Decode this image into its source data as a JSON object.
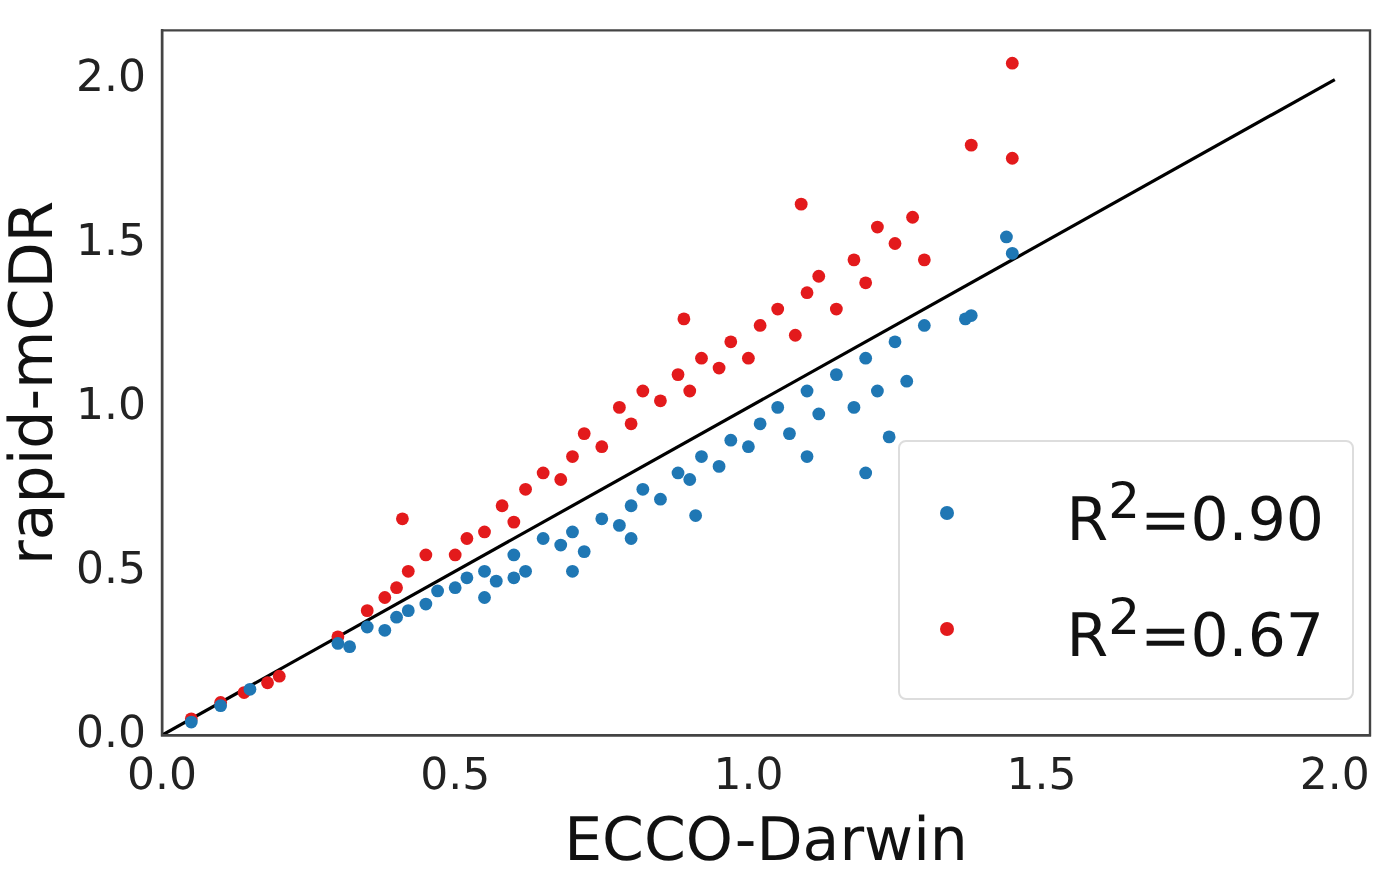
{
  "chart_data": {
    "type": "scatter",
    "xlabel": "ECCO-Darwin",
    "ylabel": "rapid-mCDR",
    "xlim": [
      0,
      2.06
    ],
    "ylim": [
      0,
      2.15
    ],
    "xticks": [
      {
        "value": 0,
        "label": "0.0"
      },
      {
        "value": 0.5,
        "label": "0.5"
      },
      {
        "value": 1,
        "label": "1.0"
      },
      {
        "value": 1.5,
        "label": "1.5"
      },
      {
        "value": 2,
        "label": "2.0"
      }
    ],
    "yticks": [
      {
        "value": 0,
        "label": "0.0"
      },
      {
        "value": 0.5,
        "label": "0.5"
      },
      {
        "value": 1,
        "label": "1.0"
      },
      {
        "value": 1.5,
        "label": "1.5"
      },
      {
        "value": 2,
        "label": "2.0"
      }
    ],
    "grid": false,
    "legend": "bottom right",
    "marker": "circle",
    "series": [
      {
        "name": "R$^{2}$=0.90",
        "color": "#1f77b4",
        "x": [
          0.05,
          0.1,
          0.15,
          0.3,
          0.32,
          0.35,
          0.38,
          0.4,
          0.42,
          0.45,
          0.47,
          0.5,
          0.52,
          0.55,
          0.57,
          0.6,
          0.62,
          0.65,
          0.68,
          0.7,
          0.72,
          0.75,
          0.78,
          0.8,
          0.82,
          0.85,
          0.88,
          0.9,
          0.92,
          0.95,
          0.97,
          1.0,
          1.02,
          1.05,
          1.07,
          1.1,
          1.12,
          1.15,
          1.18,
          1.2,
          1.22,
          1.24,
          1.25,
          1.27,
          1.3,
          1.37,
          1.38,
          1.44,
          1.45,
          0.7,
          0.91,
          1.1,
          1.2,
          0.55,
          0.8,
          0.6
        ],
        "values": [
          0.04,
          0.09,
          0.14,
          0.28,
          0.27,
          0.33,
          0.32,
          0.36,
          0.38,
          0.4,
          0.44,
          0.45,
          0.48,
          0.5,
          0.47,
          0.55,
          0.5,
          0.6,
          0.58,
          0.62,
          0.56,
          0.66,
          0.64,
          0.7,
          0.75,
          0.72,
          0.8,
          0.78,
          0.85,
          0.82,
          0.9,
          0.88,
          0.95,
          1.0,
          0.92,
          1.05,
          0.98,
          1.1,
          1.0,
          1.15,
          1.05,
          0.91,
          1.2,
          1.08,
          1.25,
          1.27,
          1.28,
          1.52,
          1.47,
          0.5,
          0.67,
          0.85,
          0.8,
          0.42,
          0.6,
          0.48
        ]
      },
      {
        "name": "R$^{2}$=0.67",
        "color": "#e31a1c",
        "x": [
          0.05,
          0.1,
          0.14,
          0.18,
          0.2,
          0.3,
          0.35,
          0.38,
          0.4,
          0.41,
          0.42,
          0.45,
          0.5,
          0.52,
          0.55,
          0.58,
          0.6,
          0.62,
          0.65,
          0.68,
          0.7,
          0.72,
          0.75,
          0.78,
          0.8,
          0.82,
          0.85,
          0.88,
          0.89,
          0.9,
          0.92,
          0.95,
          0.97,
          1.0,
          1.02,
          1.05,
          1.08,
          1.09,
          1.1,
          1.12,
          1.15,
          1.18,
          1.2,
          1.22,
          1.25,
          1.28,
          1.3,
          1.38,
          1.45,
          1.45
        ],
        "values": [
          0.05,
          0.1,
          0.13,
          0.16,
          0.18,
          0.3,
          0.38,
          0.42,
          0.45,
          0.66,
          0.5,
          0.55,
          0.55,
          0.6,
          0.62,
          0.7,
          0.65,
          0.75,
          0.8,
          0.78,
          0.85,
          0.92,
          0.88,
          1.0,
          0.95,
          1.05,
          1.02,
          1.1,
          1.27,
          1.05,
          1.15,
          1.12,
          1.2,
          1.15,
          1.25,
          1.3,
          1.22,
          1.62,
          1.35,
          1.4,
          1.3,
          1.45,
          1.38,
          1.55,
          1.5,
          1.58,
          1.45,
          1.8,
          2.05,
          1.76
        ]
      },
      {
        "type": "line",
        "color": "#000000",
        "marker": "none",
        "x": [
          0,
          2
        ],
        "values": [
          0,
          2
        ]
      }
    ]
  }
}
